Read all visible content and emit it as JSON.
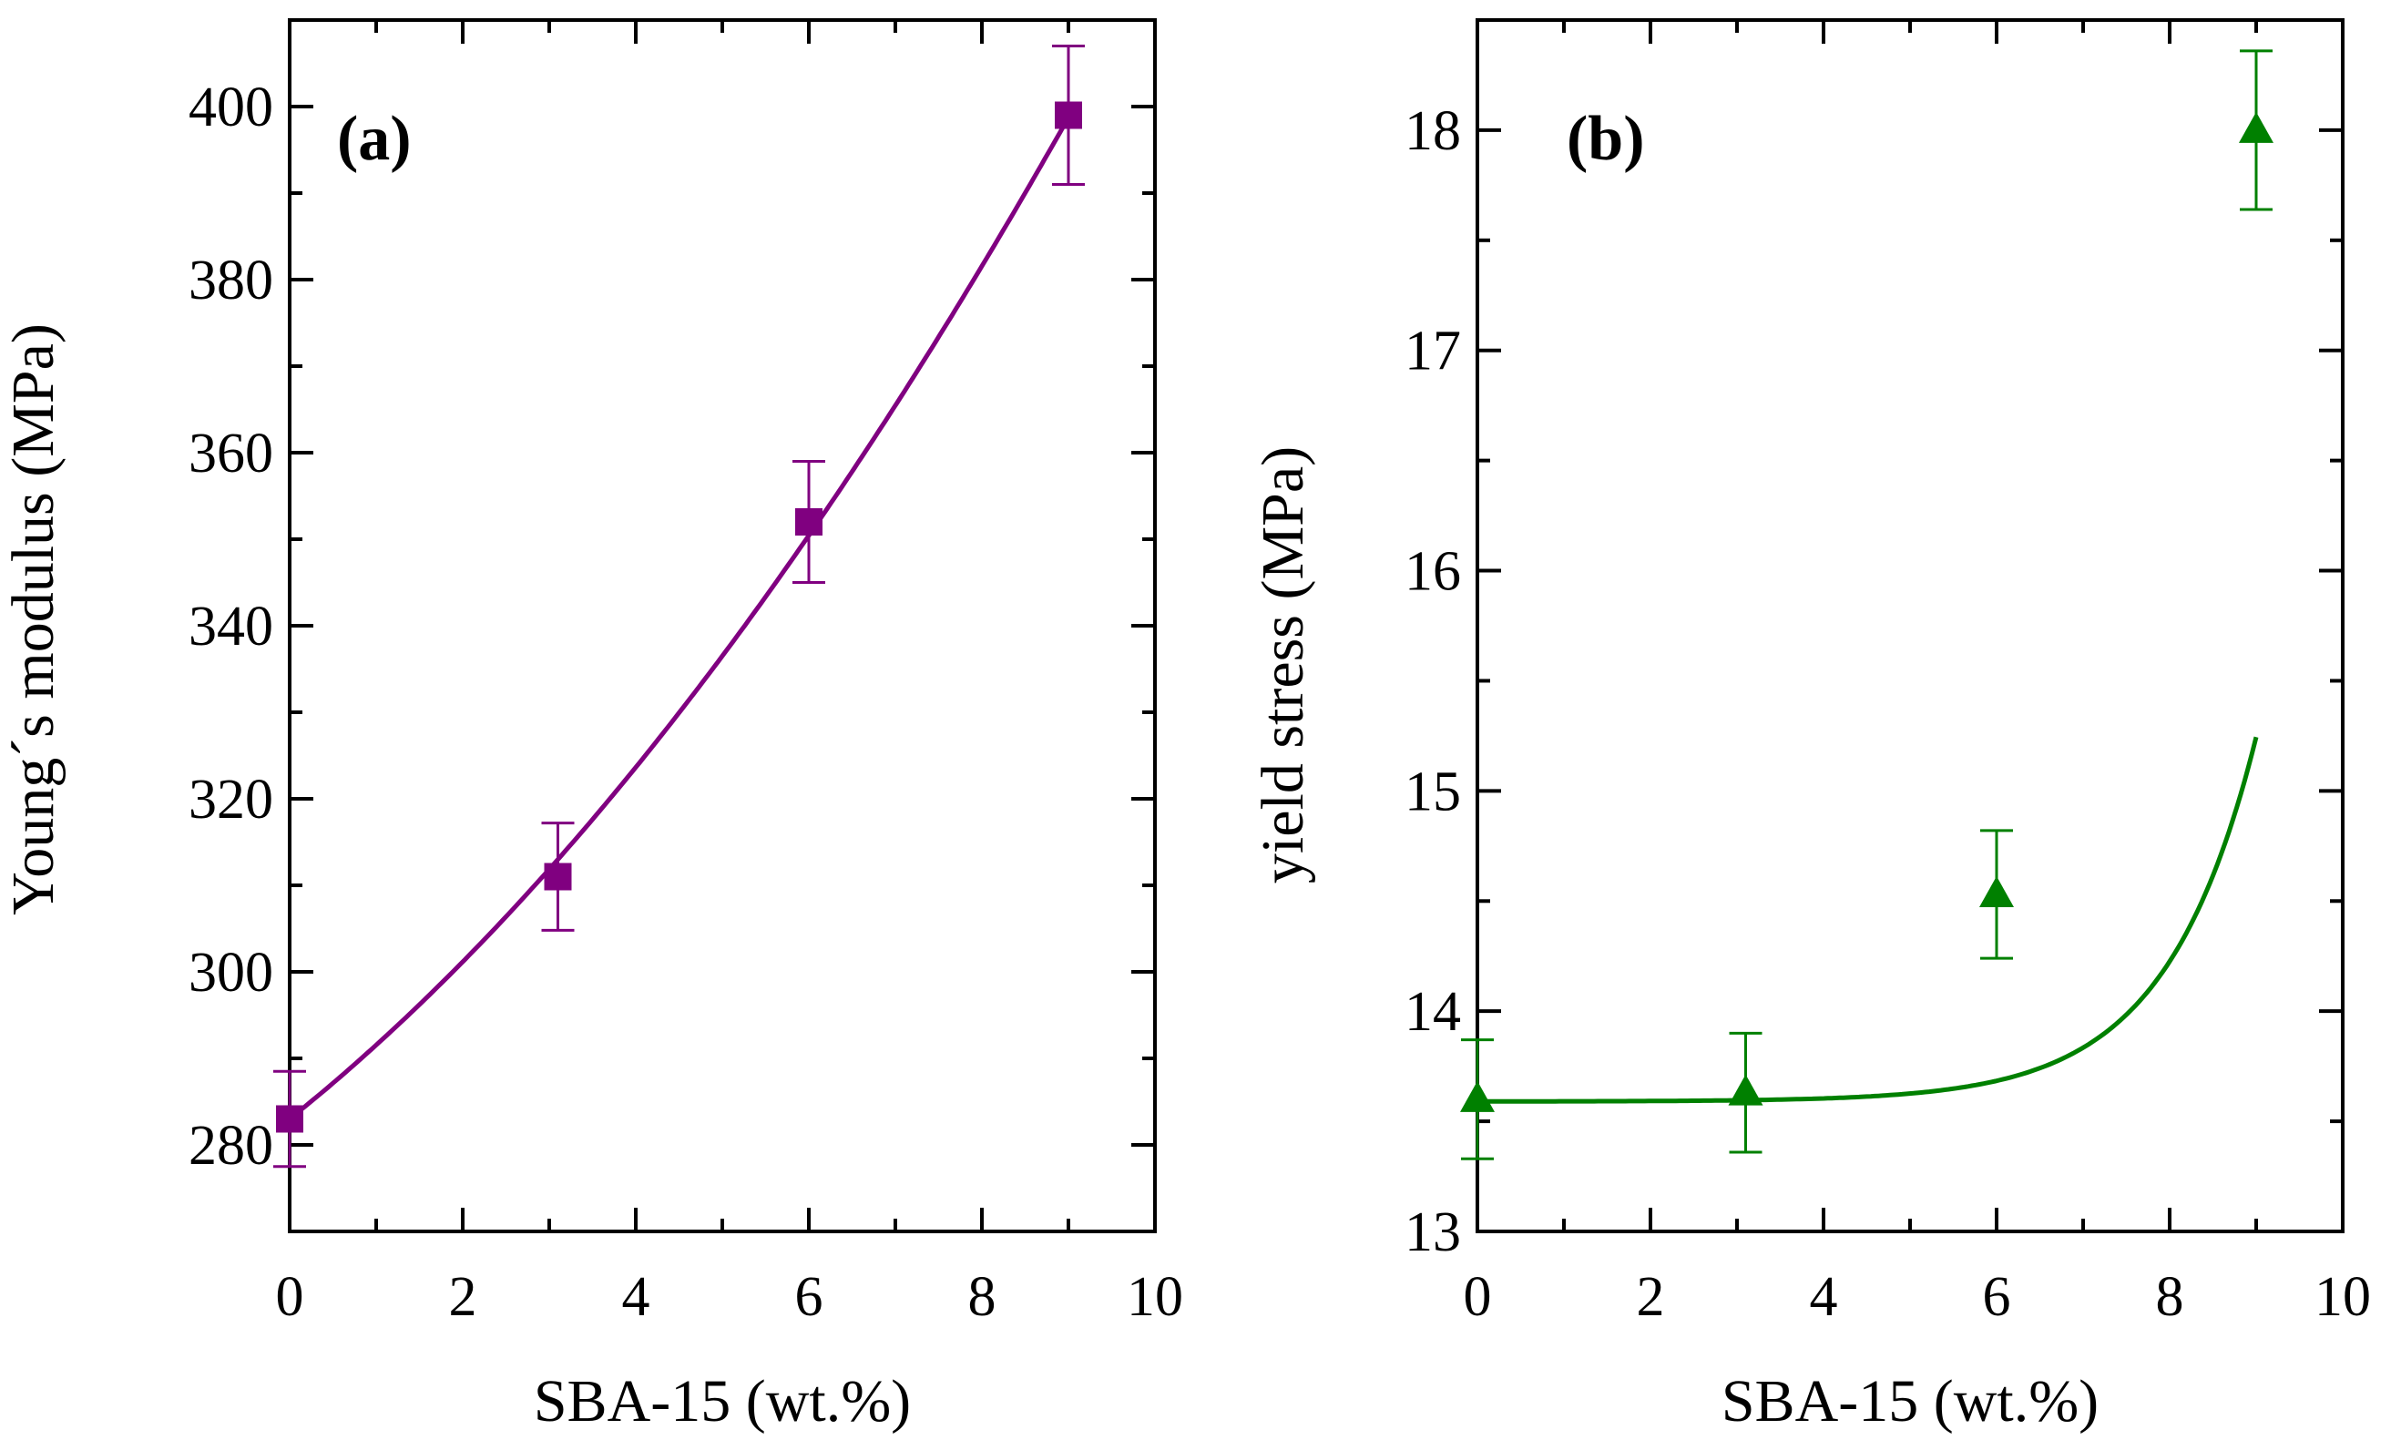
{
  "chart_data": [
    {
      "type": "scatter",
      "panel_label": "(a)",
      "xlabel": "SBA-15 (wt.%)",
      "ylabel": "Young´s modulus (MPa)",
      "xlim": [
        0,
        10
      ],
      "ylim": [
        270,
        410
      ],
      "xticks": [
        0,
        2,
        4,
        6,
        8,
        10
      ],
      "yticks": [
        280,
        300,
        320,
        340,
        360,
        380,
        400
      ],
      "grid": false,
      "color": "#800080",
      "marker": "square",
      "series": [
        {
          "x": [
            0,
            3.1,
            6,
            9
          ],
          "y": [
            283,
            311,
            352,
            399
          ],
          "yerr": [
            5.5,
            6.2,
            7,
            8
          ]
        }
      ],
      "fit": {
        "kind": "quadratic",
        "a": 283,
        "b": 8.0,
        "c": 0.54
      }
    },
    {
      "type": "scatter",
      "panel_label": "(b)",
      "xlabel": "SBA-15 (wt.%)",
      "ylabel": "yield stress (MPa)",
      "xlim": [
        0,
        10
      ],
      "ylim": [
        13,
        18.5
      ],
      "xticks": [
        0,
        2,
        4,
        6,
        8,
        10
      ],
      "yticks": [
        13,
        14,
        15,
        16,
        17,
        18
      ],
      "grid": false,
      "color": "#008000",
      "marker": "triangle",
      "series": [
        {
          "x": [
            0,
            3.1,
            6,
            9
          ],
          "y": [
            13.6,
            13.63,
            14.53,
            18.0
          ],
          "yerr": [
            0.27,
            0.27,
            0.29,
            0.36
          ]
        }
      ],
      "fit": {
        "kind": "exponential",
        "base": 13.59,
        "amp": 0.000302,
        "k": 0.9565
      }
    }
  ]
}
